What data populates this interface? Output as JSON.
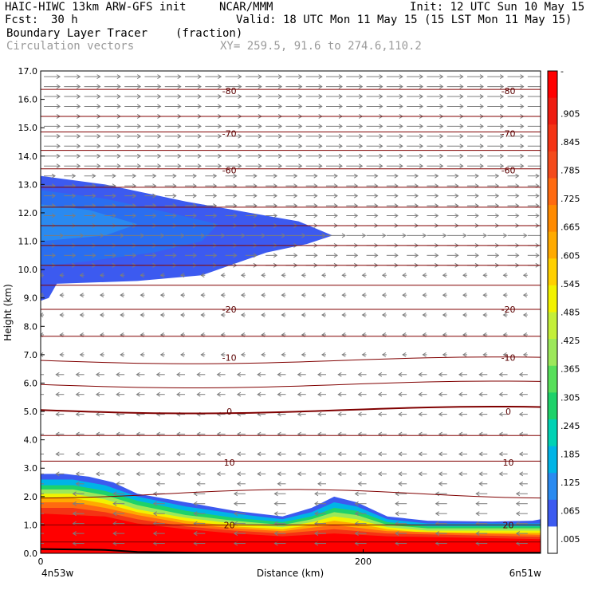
{
  "header": {
    "model": "HAIC-HIWC 13km ARW-GFS init",
    "org": "NCAR/MMM",
    "init": "Init: 12 UTC Sun 10 May 15",
    "fcst_label": "Fcst:",
    "fcst_value": "30 h",
    "valid": "Valid: 18 UTC Mon 11 May 15 (15 LST Mon 11 May 15)",
    "field": "Boundary Layer Tracer",
    "field_units": "(fraction)",
    "vectors": "Circulation vectors",
    "xy": "XY= 259.5, 91.6 to 274.6,110.2"
  },
  "chart_data": {
    "type": "area",
    "title": "Boundary Layer Tracer (fraction)",
    "xlabel": "Distance (km)",
    "ylabel": "Height (km)",
    "xlim": [
      0,
      310
    ],
    "ylim": [
      0,
      17
    ],
    "x_ticks": [
      0,
      200
    ],
    "x_tick_labels": [
      "0",
      "200"
    ],
    "x_end_labels": [
      "4n53w",
      "6n51w"
    ],
    "y_ticks": [
      0,
      1,
      2,
      3,
      4,
      5,
      6,
      7,
      8,
      9,
      10,
      11,
      12,
      13,
      14,
      15,
      16,
      17
    ],
    "y_tick_labels": [
      "0.0",
      "1.0",
      "2.0",
      "3.0",
      "4.0",
      "5.0",
      "6.0",
      "7.0",
      "8.0",
      "9.0",
      "10.0",
      "11.0",
      "12.0",
      "13.0",
      "14.0",
      "15.0",
      "16.0",
      "17.0"
    ],
    "colorbar": {
      "labels": [
        "-",
        ".905",
        ".845",
        ".785",
        ".725",
        ".665",
        ".605",
        ".545",
        ".485",
        ".425",
        ".365",
        ".305",
        ".245",
        ".185",
        ".125",
        ".065",
        ".005"
      ],
      "colors": [
        "#ff0000",
        "#ee1c10",
        "#f43314",
        "#f44a1b",
        "#ff6a10",
        "#ff8a00",
        "#ffaa00",
        "#ffd000",
        "#f2f200",
        "#c4ef3a",
        "#9ce85a",
        "#57df5a",
        "#1ed26a",
        "#00d2b4",
        "#00b4e6",
        "#2a8af0",
        "#3c5af0",
        "#ffffff"
      ]
    },
    "isotherm_labels": [
      {
        "value": "-80",
        "y": 16.3
      },
      {
        "value": "-70",
        "y": 14.8
      },
      {
        "value": "-60",
        "y": 13.5
      },
      {
        "value": "-20",
        "y": 8.6
      },
      {
        "value": "-10",
        "y": 6.9
      },
      {
        "value": "0",
        "y": 5.0
      },
      {
        "value": "10",
        "y": 3.2
      },
      {
        "value": "20",
        "y": 1.0
      }
    ]
  }
}
